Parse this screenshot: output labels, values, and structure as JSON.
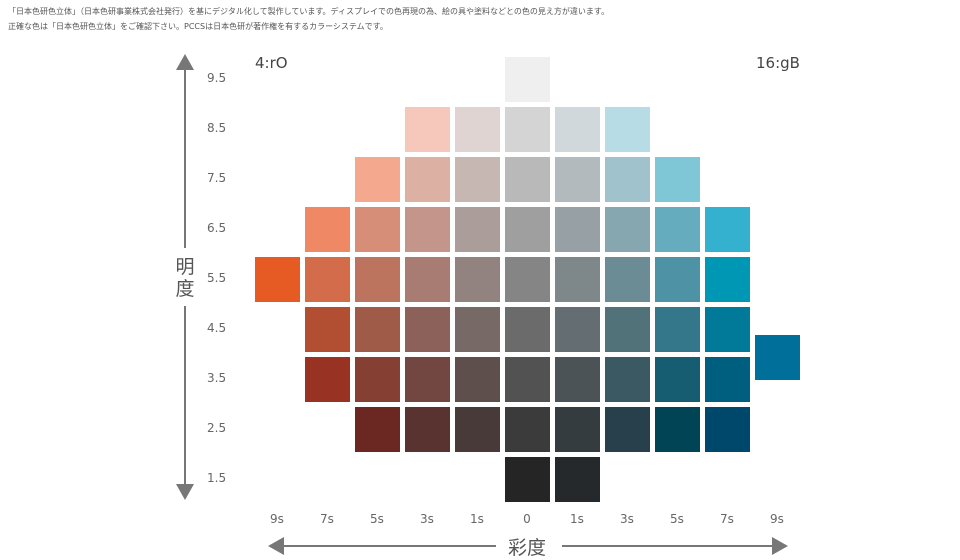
{
  "notes": {
    "line1": "「日本色研色立体」（日本色研事業株式会社発行）を基にデジタル化して製作しています。ディスプレイでの色再現の為、絵の具や塗料などとの色の見え方が違います。",
    "line2": "正確な色は「日本色研色立体」をご確認下さい。PCCSは日本色研が著作権を有するカラーシステムです。"
  },
  "hues": {
    "left": "4:rO",
    "right": "16:gB"
  },
  "axes": {
    "vertical_title": "明度",
    "horizontal_title": "彩度",
    "lightness_ticks": [
      "9.5",
      "8.5",
      "7.5",
      "6.5",
      "5.5",
      "4.5",
      "3.5",
      "2.5",
      "1.5"
    ],
    "saturation_ticks": [
      "9s",
      "7s",
      "5s",
      "3s",
      "1s",
      "0",
      "1s",
      "3s",
      "5s",
      "7s",
      "9s"
    ]
  },
  "swatches": [
    {
      "col": 5,
      "row": 0,
      "color": "#efefef"
    },
    {
      "col": 3,
      "row": 1,
      "color": "#f6c8bb"
    },
    {
      "col": 4,
      "row": 1,
      "color": "#dfd4d1"
    },
    {
      "col": 5,
      "row": 1,
      "color": "#d4d4d4"
    },
    {
      "col": 6,
      "row": 1,
      "color": "#d0d8db"
    },
    {
      "col": 7,
      "row": 1,
      "color": "#b8dce5"
    },
    {
      "col": 2,
      "row": 2,
      "color": "#f4a88e"
    },
    {
      "col": 3,
      "row": 2,
      "color": "#dcb1a4"
    },
    {
      "col": 4,
      "row": 2,
      "color": "#c6b7b3"
    },
    {
      "col": 5,
      "row": 2,
      "color": "#b9b9b9"
    },
    {
      "col": 6,
      "row": 2,
      "color": "#b3babd"
    },
    {
      "col": 7,
      "row": 2,
      "color": "#a0c2cc"
    },
    {
      "col": 8,
      "row": 2,
      "color": "#7fc6d6"
    },
    {
      "col": 1,
      "row": 3,
      "color": "#ee8865"
    },
    {
      "col": 2,
      "row": 3,
      "color": "#d68e78"
    },
    {
      "col": 3,
      "row": 3,
      "color": "#c4968b"
    },
    {
      "col": 4,
      "row": 3,
      "color": "#ab9d9a"
    },
    {
      "col": 5,
      "row": 3,
      "color": "#9f9f9f"
    },
    {
      "col": 6,
      "row": 3,
      "color": "#97a0a4"
    },
    {
      "col": 7,
      "row": 3,
      "color": "#86a6b0"
    },
    {
      "col": 8,
      "row": 3,
      "color": "#66acbf"
    },
    {
      "col": 9,
      "row": 3,
      "color": "#33b1cf"
    },
    {
      "col": 0,
      "row": 4,
      "color": "#e65a24"
    },
    {
      "col": 1,
      "row": 4,
      "color": "#d26c4b"
    },
    {
      "col": 2,
      "row": 4,
      "color": "#bc745f"
    },
    {
      "col": 3,
      "row": 4,
      "color": "#a87c73"
    },
    {
      "col": 4,
      "row": 4,
      "color": "#938380"
    },
    {
      "col": 5,
      "row": 4,
      "color": "#858585"
    },
    {
      "col": 6,
      "row": 4,
      "color": "#7e878a"
    },
    {
      "col": 7,
      "row": 4,
      "color": "#6c8c95"
    },
    {
      "col": 8,
      "row": 4,
      "color": "#4d92a5"
    },
    {
      "col": 9,
      "row": 4,
      "color": "#0097b4"
    },
    {
      "col": 1,
      "row": 5,
      "color": "#b24f33"
    },
    {
      "col": 2,
      "row": 5,
      "color": "#9f5a48"
    },
    {
      "col": 3,
      "row": 5,
      "color": "#8c6159"
    },
    {
      "col": 4,
      "row": 5,
      "color": "#776966"
    },
    {
      "col": 5,
      "row": 5,
      "color": "#6b6b6b"
    },
    {
      "col": 6,
      "row": 5,
      "color": "#646d71"
    },
    {
      "col": 7,
      "row": 5,
      "color": "#527279"
    },
    {
      "col": 8,
      "row": 5,
      "color": "#35778a"
    },
    {
      "col": 9,
      "row": 5,
      "color": "#007a98"
    },
    {
      "col": 10,
      "row": 5,
      "color": "#00709a",
      "offset": 0.55
    },
    {
      "col": 1,
      "row": 6,
      "color": "#983222"
    },
    {
      "col": 2,
      "row": 6,
      "color": "#853f33"
    },
    {
      "col": 3,
      "row": 6,
      "color": "#724741"
    },
    {
      "col": 4,
      "row": 6,
      "color": "#5e4f4d"
    },
    {
      "col": 5,
      "row": 6,
      "color": "#525252"
    },
    {
      "col": 6,
      "row": 6,
      "color": "#4b5357"
    },
    {
      "col": 7,
      "row": 6,
      "color": "#3b5962"
    },
    {
      "col": 8,
      "row": 6,
      "color": "#175d71"
    },
    {
      "col": 9,
      "row": 6,
      "color": "#005f7f"
    },
    {
      "col": 2,
      "row": 7,
      "color": "#6b2823"
    },
    {
      "col": 3,
      "row": 7,
      "color": "#58332f"
    },
    {
      "col": 4,
      "row": 7,
      "color": "#483a39"
    },
    {
      "col": 5,
      "row": 7,
      "color": "#3b3b3b"
    },
    {
      "col": 6,
      "row": 7,
      "color": "#353c3f"
    },
    {
      "col": 7,
      "row": 7,
      "color": "#27404c"
    },
    {
      "col": 8,
      "row": 7,
      "color": "#004455"
    },
    {
      "col": 9,
      "row": 7,
      "color": "#00486b"
    },
    {
      "col": 5,
      "row": 8,
      "color": "#252525"
    },
    {
      "col": 6,
      "row": 8,
      "color": "#25292c"
    }
  ]
}
